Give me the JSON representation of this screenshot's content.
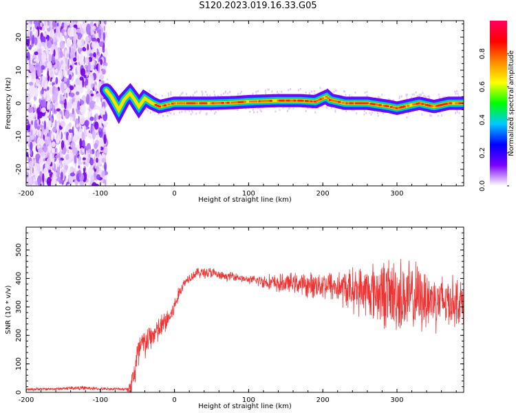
{
  "figure": {
    "title": "S120.2023.019.16.33.G05"
  },
  "chart_data": [
    {
      "type": "heatmap",
      "xlabel": "Height of straight line (km)",
      "ylabel": "Frequency (Hz)",
      "xlim": [
        -200,
        390
      ],
      "ylim": [
        -25,
        25
      ],
      "x_ticks": [
        -200,
        -100,
        0,
        100,
        200,
        300
      ],
      "y_ticks": [
        -20,
        -10,
        0,
        10,
        20
      ],
      "colorbar": {
        "label": "Normalized spectral amplitude",
        "range": [
          0,
          1
        ],
        "ticks": [
          "0.0",
          "0.2",
          "0.4",
          "0.6",
          "0.8"
        ],
        "colors": [
          "#ffffff",
          "#7a00ff",
          "#0000ff",
          "#00c8ff",
          "#00ff00",
          "#ffff00",
          "#ff8800",
          "#ff0000",
          "#ff0060"
        ]
      },
      "noise_region_x": [
        -200,
        -92
      ],
      "ridge_trace": {
        "x": [
          -92,
          -85,
          -75,
          -68,
          -60,
          -55,
          -48,
          -40,
          -30,
          -20,
          0,
          50,
          80,
          100,
          140,
          170,
          190,
          205,
          210,
          230,
          260,
          290,
          300,
          330,
          350,
          370,
          390
        ],
        "y": [
          4,
          2,
          -2,
          1,
          3,
          1.5,
          -1,
          1.5,
          0,
          -1,
          0,
          0,
          0.2,
          0.5,
          0.8,
          0.8,
          0.5,
          2,
          1,
          0,
          0,
          -1,
          -1.5,
          0,
          -1,
          0,
          0
        ]
      }
    },
    {
      "type": "line",
      "xlabel": "Height of straight line (km)",
      "ylabel": "SNR (10 * v/v)",
      "xlim": [
        -200,
        390
      ],
      "ylim": [
        0,
        580
      ],
      "x_ticks": [
        -200,
        -100,
        0,
        100,
        200,
        300
      ],
      "y_ticks": [
        0,
        100,
        200,
        300,
        400,
        500
      ],
      "grid": false,
      "series": [
        {
          "color": "#ee3333",
          "x": [
            -200,
            -180,
            -160,
            -140,
            -120,
            -100,
            -80,
            -65,
            -60,
            -55,
            -50,
            -45,
            -40,
            -35,
            -30,
            -25,
            -20,
            -15,
            -10,
            -5,
            0,
            5,
            10,
            15,
            20,
            25,
            30,
            40,
            50,
            60,
            70,
            80,
            90,
            100,
            120,
            140,
            160,
            180,
            200,
            220,
            240,
            260,
            280,
            300,
            320,
            340,
            360,
            380,
            390
          ],
          "values": [
            10,
            12,
            12,
            15,
            15,
            12,
            12,
            12,
            15,
            60,
            120,
            160,
            170,
            185,
            200,
            210,
            220,
            240,
            255,
            270,
            300,
            340,
            370,
            390,
            405,
            410,
            420,
            420,
            420,
            410,
            405,
            410,
            400,
            395,
            390,
            380,
            385,
            375,
            380,
            370,
            360,
            355,
            350,
            340,
            330,
            330,
            320,
            320,
            315
          ],
          "noise_amplitude": [
            6,
            6,
            6,
            8,
            8,
            6,
            6,
            6,
            30,
            70,
            90,
            80,
            70,
            60,
            55,
            55,
            55,
            50,
            50,
            45,
            40,
            30,
            25,
            20,
            20,
            20,
            20,
            25,
            25,
            20,
            15,
            20,
            15,
            15,
            30,
            40,
            40,
            50,
            60,
            70,
            90,
            110,
            140,
            160,
            150,
            130,
            120,
            100,
            90
          ]
        }
      ]
    }
  ]
}
